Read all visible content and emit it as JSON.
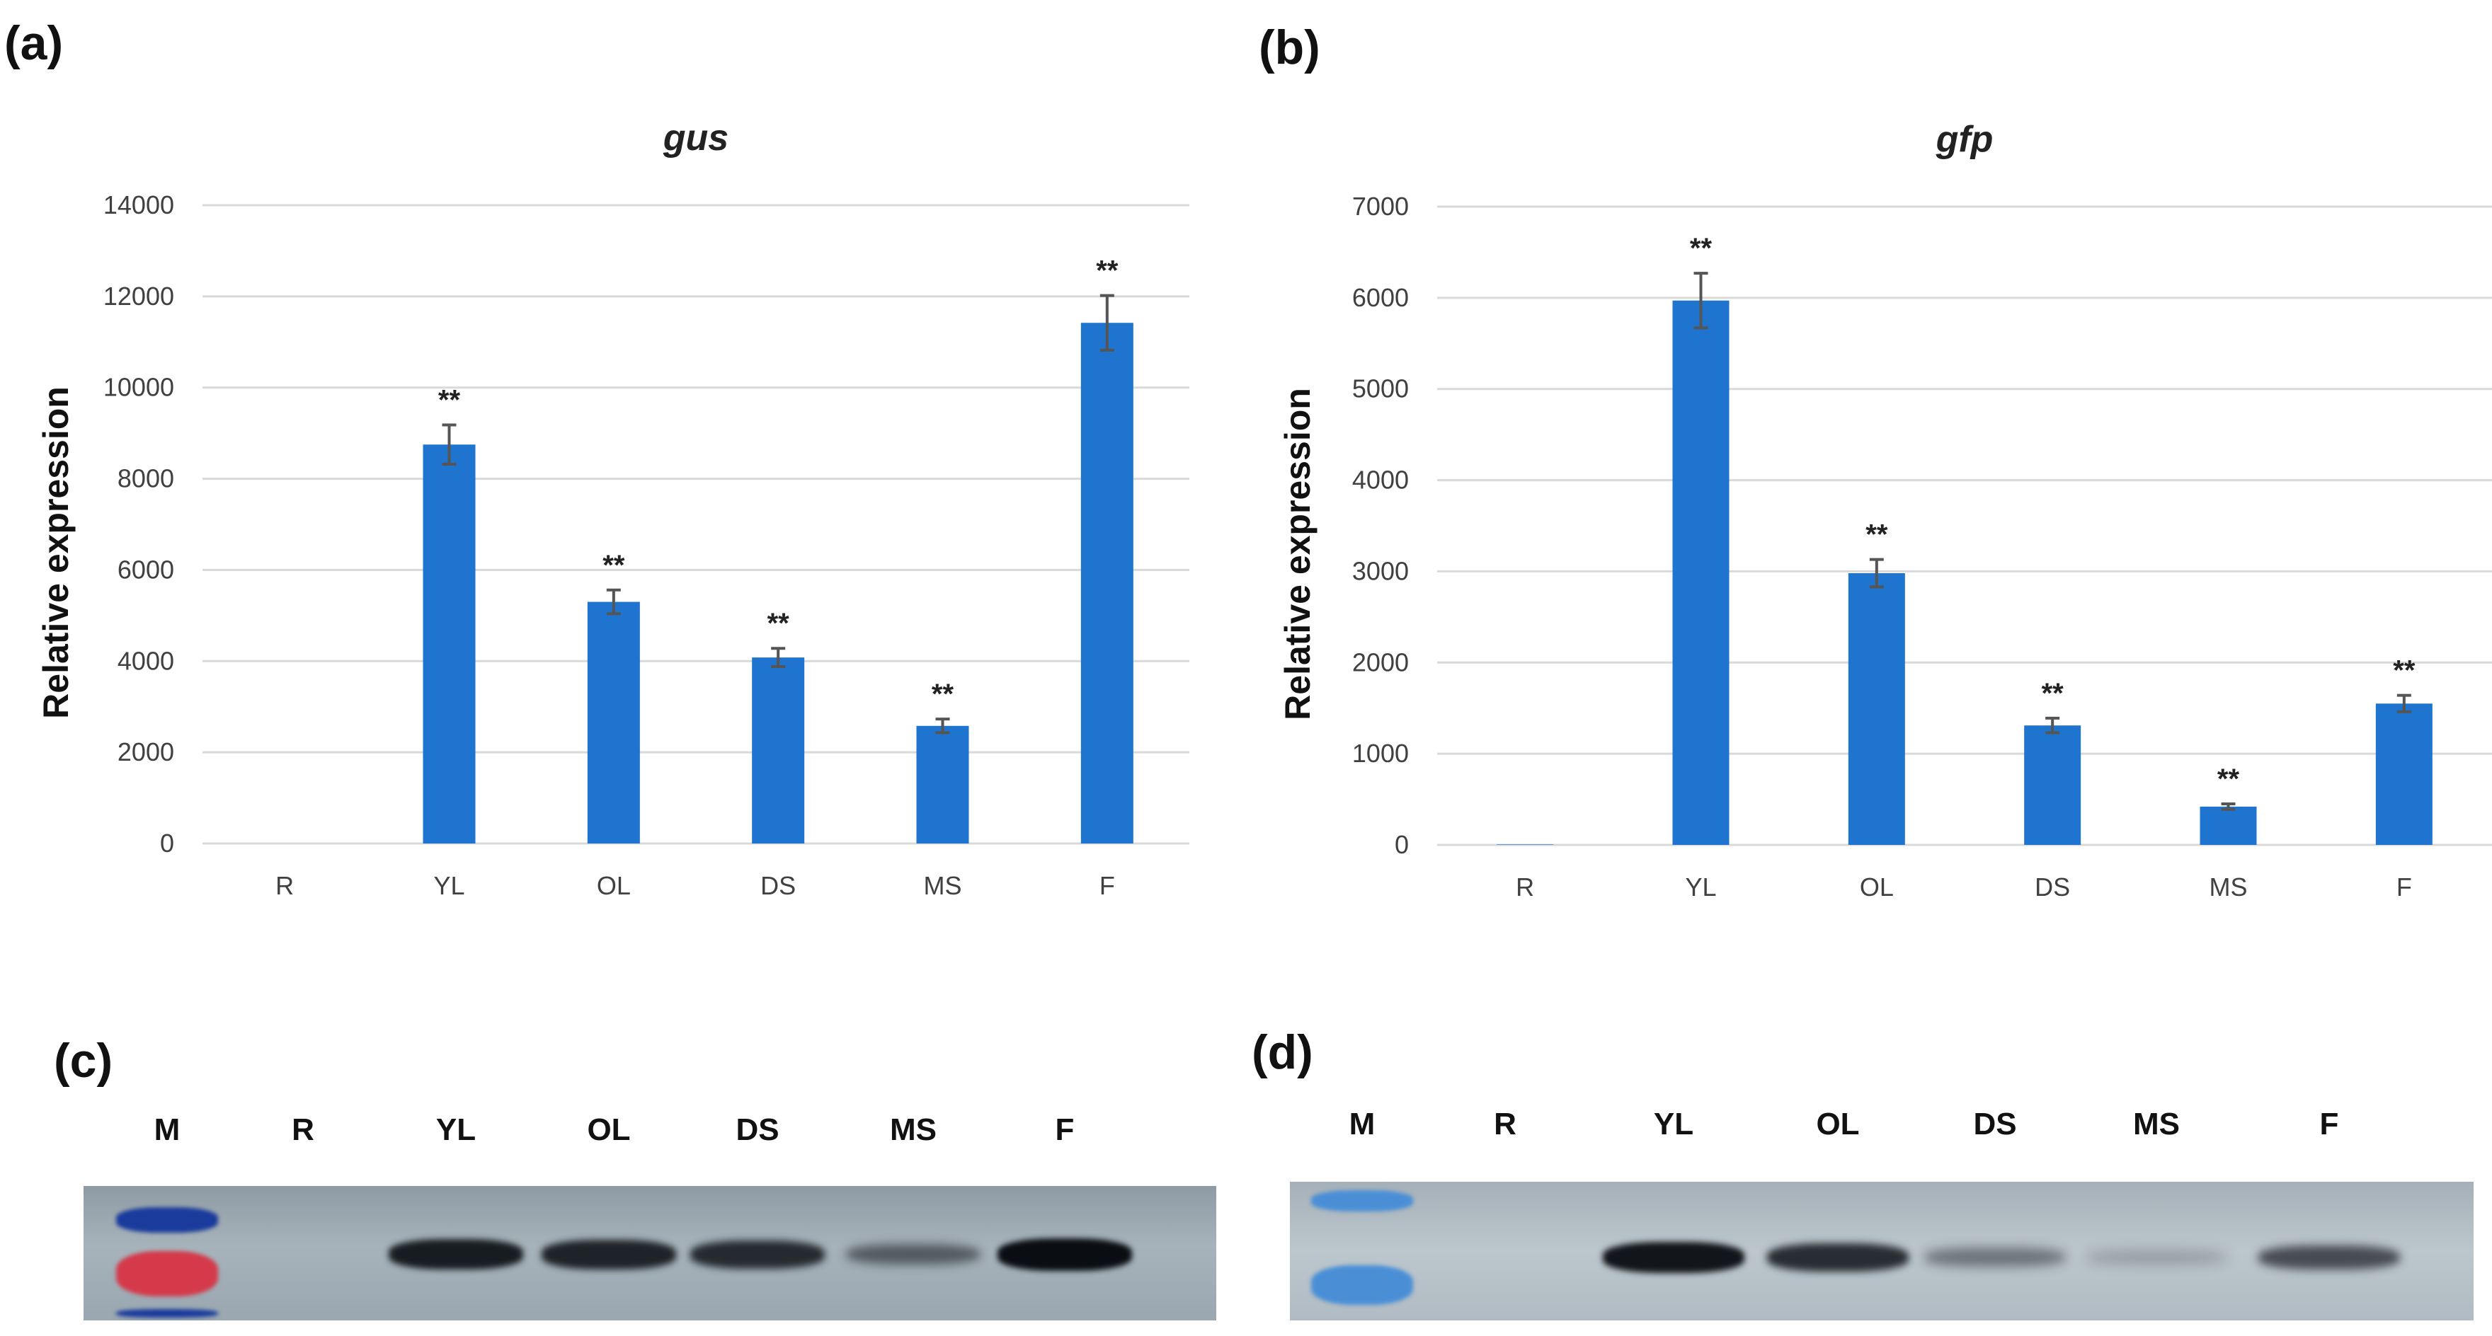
{
  "panels": {
    "a": "(a)",
    "b": "(b)",
    "c": "(c)",
    "d": "(d)"
  },
  "chart_data": [
    {
      "type": "bar",
      "title": "gus",
      "xlabel": "",
      "ylabel": "Relative expression",
      "categories": [
        "R",
        "YL",
        "OL",
        "DS",
        "MS",
        "F"
      ],
      "values": [
        0,
        8750,
        5300,
        4080,
        2580,
        11420
      ],
      "errors": [
        0,
        430,
        260,
        200,
        150,
        600
      ],
      "significance": [
        "",
        "**",
        "**",
        "**",
        "**",
        "**"
      ],
      "ylim": [
        0,
        14000
      ],
      "yticks": [
        "0",
        "2000",
        "4000",
        "6000",
        "8000",
        "10000",
        "12000",
        "14000"
      ],
      "grid": true,
      "color": "#1f74cf"
    },
    {
      "type": "bar",
      "title": "gfp",
      "xlabel": "",
      "ylabel": "Relative expression",
      "categories": [
        "R",
        "YL",
        "OL",
        "DS",
        "MS",
        "F"
      ],
      "values": [
        5,
        5970,
        2980,
        1310,
        420,
        1550
      ],
      "errors": [
        0,
        300,
        150,
        80,
        30,
        90
      ],
      "significance": [
        "",
        "**",
        "**",
        "**",
        "**",
        "**"
      ],
      "ylim": [
        0,
        7000
      ],
      "yticks": [
        "0",
        "1000",
        "2000",
        "3000",
        "4000",
        "5000",
        "6000",
        "7000"
      ],
      "grid": true,
      "color": "#1f74cf"
    }
  ],
  "gel_c": {
    "lanes": [
      "M",
      "R",
      "YL",
      "OL",
      "DS",
      "MS",
      "F"
    ],
    "intensity": [
      0,
      0,
      0.9,
      0.85,
      0.8,
      0.45,
      1.0
    ]
  },
  "gel_d": {
    "lanes": [
      "M",
      "R",
      "YL",
      "OL",
      "DS",
      "MS",
      "F"
    ],
    "intensity": [
      0,
      0,
      0.95,
      0.8,
      0.35,
      0.1,
      0.6
    ]
  }
}
